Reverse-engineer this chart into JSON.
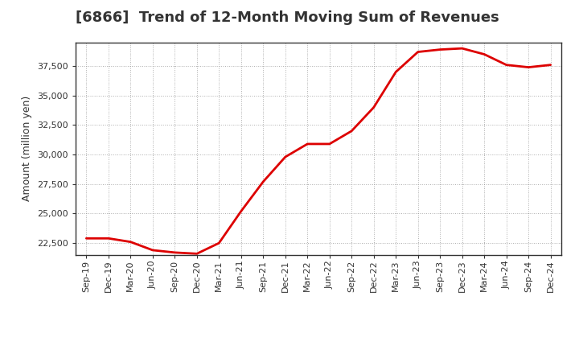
{
  "title": "[6866]  Trend of 12-Month Moving Sum of Revenues",
  "ylabel": "Amount (million yen)",
  "line_color": "#dd0000",
  "line_width": 2.0,
  "background_color": "#ffffff",
  "plot_bg_color": "#ffffff",
  "grid_color": "#999999",
  "ylim": [
    21500,
    39500
  ],
  "yticks": [
    22500,
    25000,
    27500,
    30000,
    32500,
    35000,
    37500
  ],
  "x_labels": [
    "Sep-19",
    "Dec-19",
    "Mar-20",
    "Jun-20",
    "Sep-20",
    "Dec-20",
    "Mar-21",
    "Jun-21",
    "Sep-21",
    "Dec-21",
    "Mar-22",
    "Jun-22",
    "Sep-22",
    "Dec-22",
    "Mar-23",
    "Jun-23",
    "Sep-23",
    "Dec-23",
    "Mar-24",
    "Jun-24",
    "Sep-24",
    "Dec-24"
  ],
  "values": [
    22900,
    22900,
    22600,
    21900,
    21700,
    21600,
    22500,
    25200,
    27700,
    29800,
    30900,
    30900,
    32000,
    34000,
    37000,
    38700,
    38900,
    39000,
    38500,
    37600,
    37400,
    37600
  ],
  "title_fontsize": 13,
  "ylabel_fontsize": 9,
  "tick_fontsize": 8
}
